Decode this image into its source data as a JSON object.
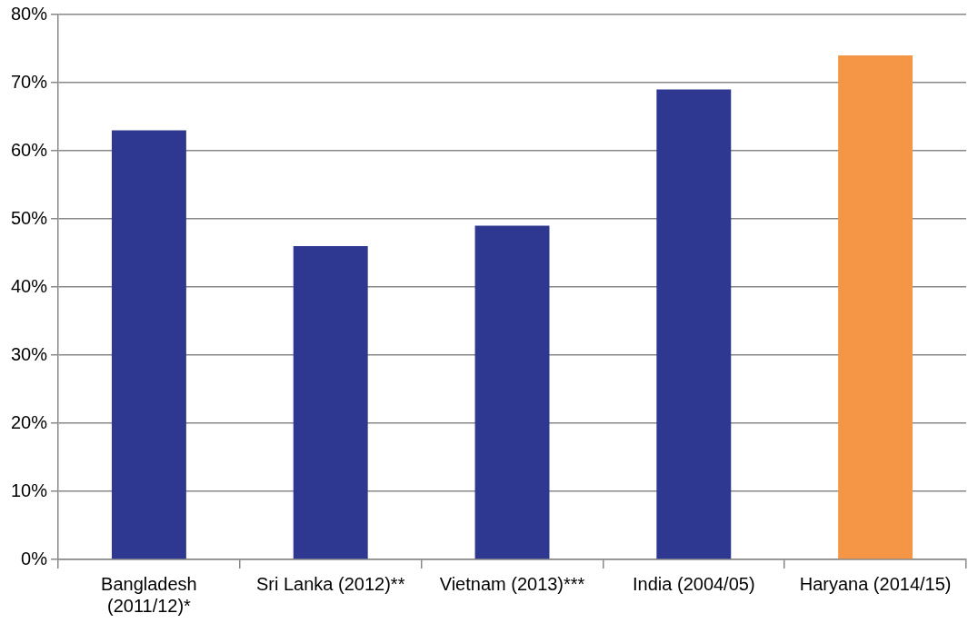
{
  "chart_data": {
    "type": "bar",
    "categories": [
      "Bangladesh (2011/12)*",
      "Sri Lanka (2012)**",
      "Vietnam (2013)***",
      "India (2004/05)",
      "Haryana (2014/15)"
    ],
    "values": [
      63,
      46,
      49,
      69,
      74
    ],
    "colors": [
      "#2e3890",
      "#2e3890",
      "#2e3890",
      "#2e3890",
      "#f59646"
    ],
    "ylim": [
      0,
      80
    ],
    "yticks": [
      {
        "value": 0,
        "label": "0%"
      },
      {
        "value": 10,
        "label": "10%"
      },
      {
        "value": 20,
        "label": "20%"
      },
      {
        "value": 30,
        "label": "30%"
      },
      {
        "value": 40,
        "label": "40%"
      },
      {
        "value": 50,
        "label": "50%"
      },
      {
        "value": 60,
        "label": "60%"
      },
      {
        "value": 70,
        "label": "70%"
      },
      {
        "value": 80,
        "label": "80%"
      }
    ],
    "grid": "y"
  }
}
